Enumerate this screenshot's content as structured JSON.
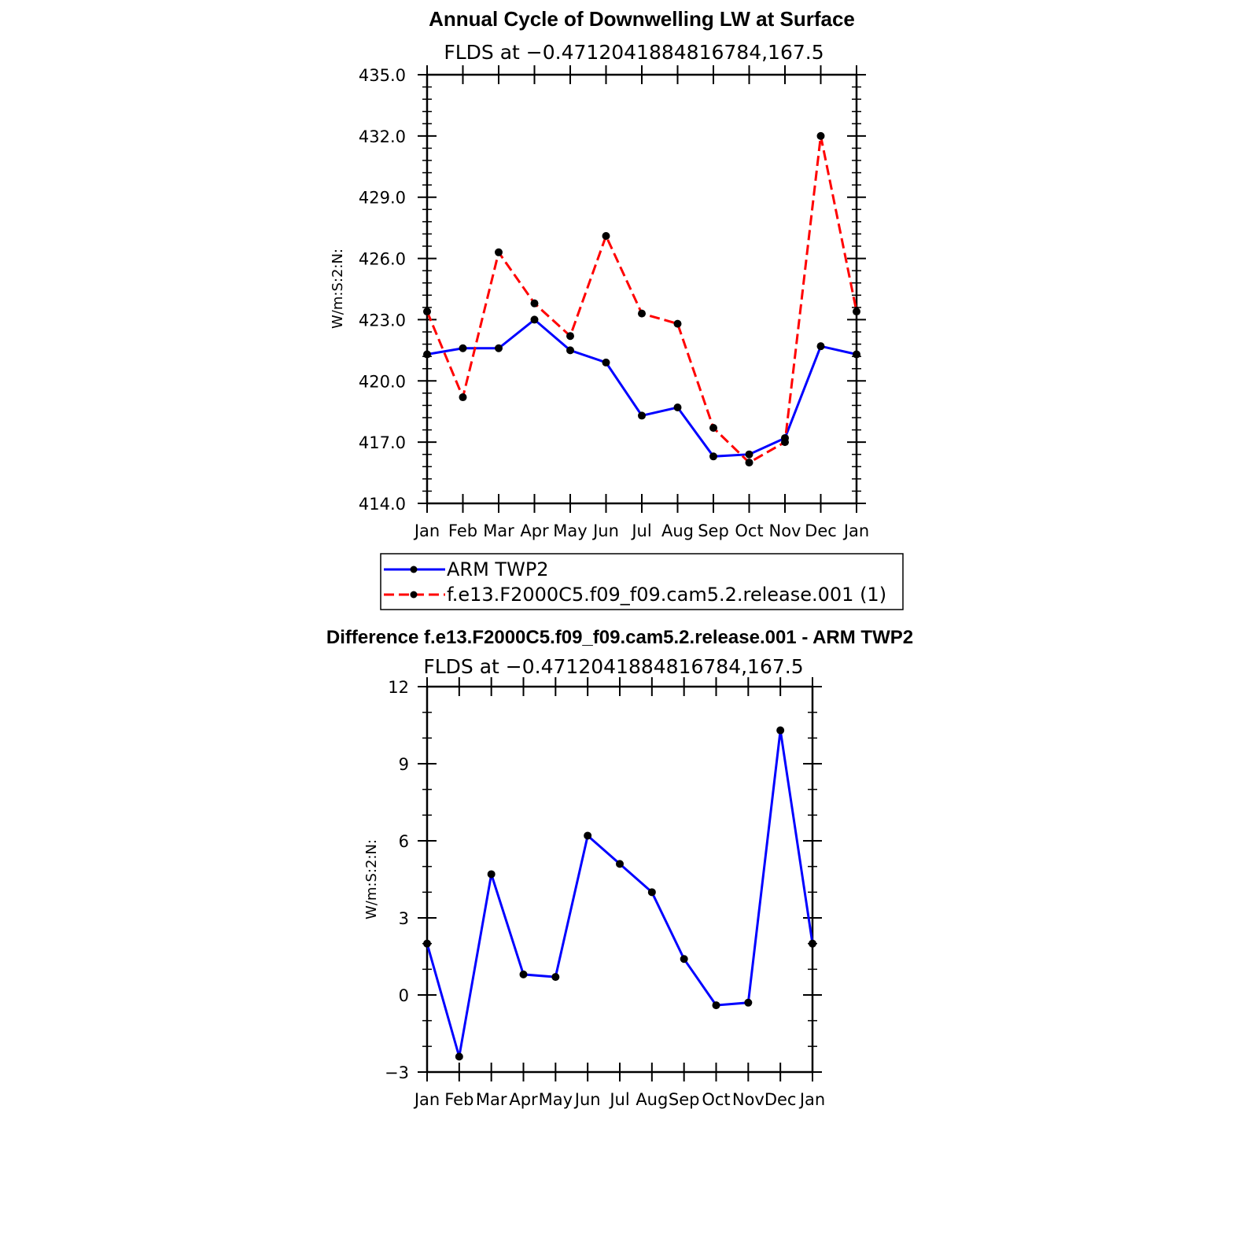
{
  "chart_data": [
    {
      "type": "line",
      "title": "Annual Cycle of Downwelling LW at Surface",
      "subtitle": "FLDS at −0.4712041884816784,167.5",
      "ylabel": "W/m:S:2:N:",
      "xlabel": "",
      "categories": [
        "Jan",
        "Feb",
        "Mar",
        "Apr",
        "May",
        "Jun",
        "Jul",
        "Aug",
        "Sep",
        "Oct",
        "Nov",
        "Dec",
        "Jan"
      ],
      "ylim": [
        414.0,
        435.0
      ],
      "yticks": [
        "414.0",
        "417.0",
        "420.0",
        "423.0",
        "426.0",
        "429.0",
        "432.0",
        "435.0"
      ],
      "grid": false,
      "legend_position": "bottom",
      "series": [
        {
          "name": "ARM TWP2",
          "color": "#0000ff",
          "dash": "solid",
          "values": [
            421.3,
            421.6,
            421.6,
            423.0,
            421.5,
            420.9,
            418.3,
            418.7,
            416.3,
            416.4,
            417.2,
            421.7,
            421.3
          ]
        },
        {
          "name": "f.e13.F2000C5.f09_f09.cam5.2.release.001 (1)",
          "color": "#ff0000",
          "dash": "dashed",
          "values": [
            423.4,
            419.2,
            426.3,
            423.8,
            422.2,
            427.1,
            423.3,
            422.8,
            417.7,
            416.0,
            417.0,
            432.0,
            423.4
          ]
        }
      ]
    },
    {
      "type": "line",
      "title": "Difference f.e13.F2000C5.f09_f09.cam5.2.release.001 - ARM TWP2",
      "subtitle": "FLDS at −0.4712041884816784,167.5",
      "ylabel": "W/m:S:2:N:",
      "xlabel": "",
      "categories": [
        "Jan",
        "Feb",
        "Mar",
        "Apr",
        "May",
        "Jun",
        "Jul",
        "Aug",
        "Sep",
        "Oct",
        "Nov",
        "Dec",
        "Jan"
      ],
      "ylim": [
        -3,
        12
      ],
      "yticks": [
        "−3",
        "0",
        "3",
        "6",
        "9",
        "12"
      ],
      "grid": false,
      "series": [
        {
          "color": "#0000ff",
          "dash": "solid",
          "values": [
            2.0,
            -2.4,
            4.7,
            0.8,
            0.7,
            6.2,
            5.1,
            4.0,
            1.4,
            -0.4,
            -0.3,
            10.3,
            2.0
          ]
        }
      ]
    }
  ]
}
